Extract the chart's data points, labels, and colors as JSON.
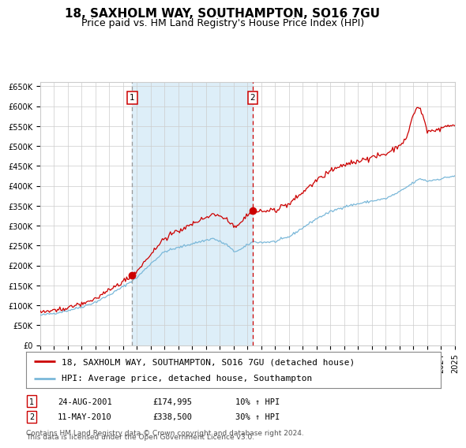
{
  "title": "18, SAXHOLM WAY, SOUTHAMPTON, SO16 7GU",
  "subtitle": "Price paid vs. HM Land Registry's House Price Index (HPI)",
  "ylim": [
    0,
    660000
  ],
  "yticks": [
    0,
    50000,
    100000,
    150000,
    200000,
    250000,
    300000,
    350000,
    400000,
    450000,
    500000,
    550000,
    600000,
    650000
  ],
  "ytick_labels": [
    "£0",
    "£50K",
    "£100K",
    "£150K",
    "£200K",
    "£250K",
    "£300K",
    "£350K",
    "£400K",
    "£450K",
    "£500K",
    "£550K",
    "£600K",
    "£650K"
  ],
  "purchase1_date_year": 2001.65,
  "purchase1_price": 174995,
  "purchase1_label": "1",
  "purchase1_date_str": "24-AUG-2001",
  "purchase1_price_str": "£174,995",
  "purchase1_pct": "10% ↑ HPI",
  "purchase2_date_year": 2010.37,
  "purchase2_price": 338500,
  "purchase2_label": "2",
  "purchase2_date_str": "11-MAY-2010",
  "purchase2_price_str": "£338,500",
  "purchase2_pct": "30% ↑ HPI",
  "hpi_line_color": "#7ab8d9",
  "price_line_color": "#cc0000",
  "shaded_region_color": "#ddeef8",
  "vline1_color": "#999999",
  "vline2_color": "#cc0000",
  "legend_line1": "18, SAXHOLM WAY, SOUTHAMPTON, SO16 7GU (detached house)",
  "legend_line2": "HPI: Average price, detached house, Southampton",
  "footnote1": "Contains HM Land Registry data © Crown copyright and database right 2024.",
  "footnote2": "This data is licensed under the Open Government Licence v3.0.",
  "background_color": "#ffffff",
  "grid_color": "#cccccc",
  "title_fontsize": 11,
  "subtitle_fontsize": 9,
  "tick_fontsize": 7,
  "legend_fontsize": 8,
  "footnote_fontsize": 6.5,
  "xstart": 1995,
  "xend": 2025
}
